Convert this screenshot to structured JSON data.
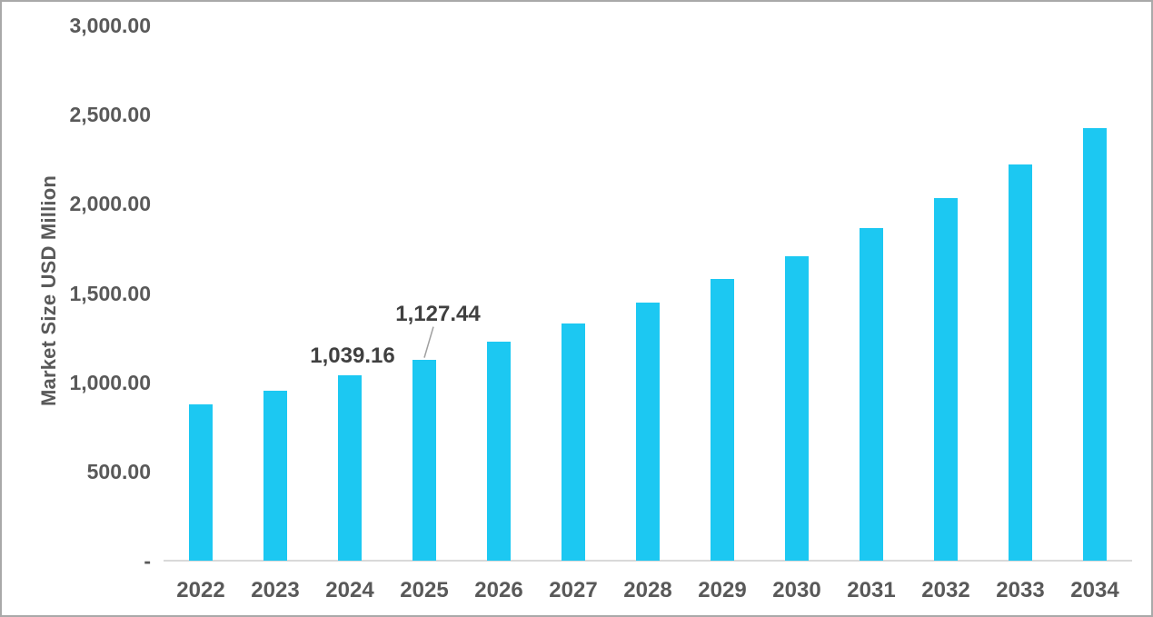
{
  "chart_data": {
    "type": "bar",
    "title": "",
    "xlabel": "",
    "ylabel": "Market Size USD Million",
    "ylim": [
      0,
      3000
    ],
    "grid": false,
    "legend": "none",
    "y_ticks": [
      {
        "value": 3000,
        "label": "3,000.00"
      },
      {
        "value": 2500,
        "label": "2,500.00"
      },
      {
        "value": 2000,
        "label": "2,000.00"
      },
      {
        "value": 1500,
        "label": "1,500.00"
      },
      {
        "value": 1000,
        "label": "1,000.00"
      },
      {
        "value": 500,
        "label": "500.00"
      },
      {
        "value": 0,
        "label": "-"
      }
    ],
    "categories": [
      "2022",
      "2023",
      "2024",
      "2025",
      "2026",
      "2027",
      "2028",
      "2029",
      "2030",
      "2031",
      "2032",
      "2033",
      "2034"
    ],
    "values": [
      876,
      952,
      1039.16,
      1127.44,
      1228,
      1330,
      1447,
      1578,
      1706,
      1862,
      2032,
      2220,
      2424
    ],
    "data_labels": [
      {
        "category": "2024",
        "text": "1,039.16",
        "placement": "above"
      },
      {
        "category": "2025",
        "text": "1,127.44",
        "placement": "callout"
      }
    ],
    "bar_color": "#1cc8f2",
    "axis_line_color": "#d9d9d9",
    "tick_label_color": "#595959",
    "data_label_color": "#404040",
    "callout_line_color": "#a0a0a0"
  }
}
